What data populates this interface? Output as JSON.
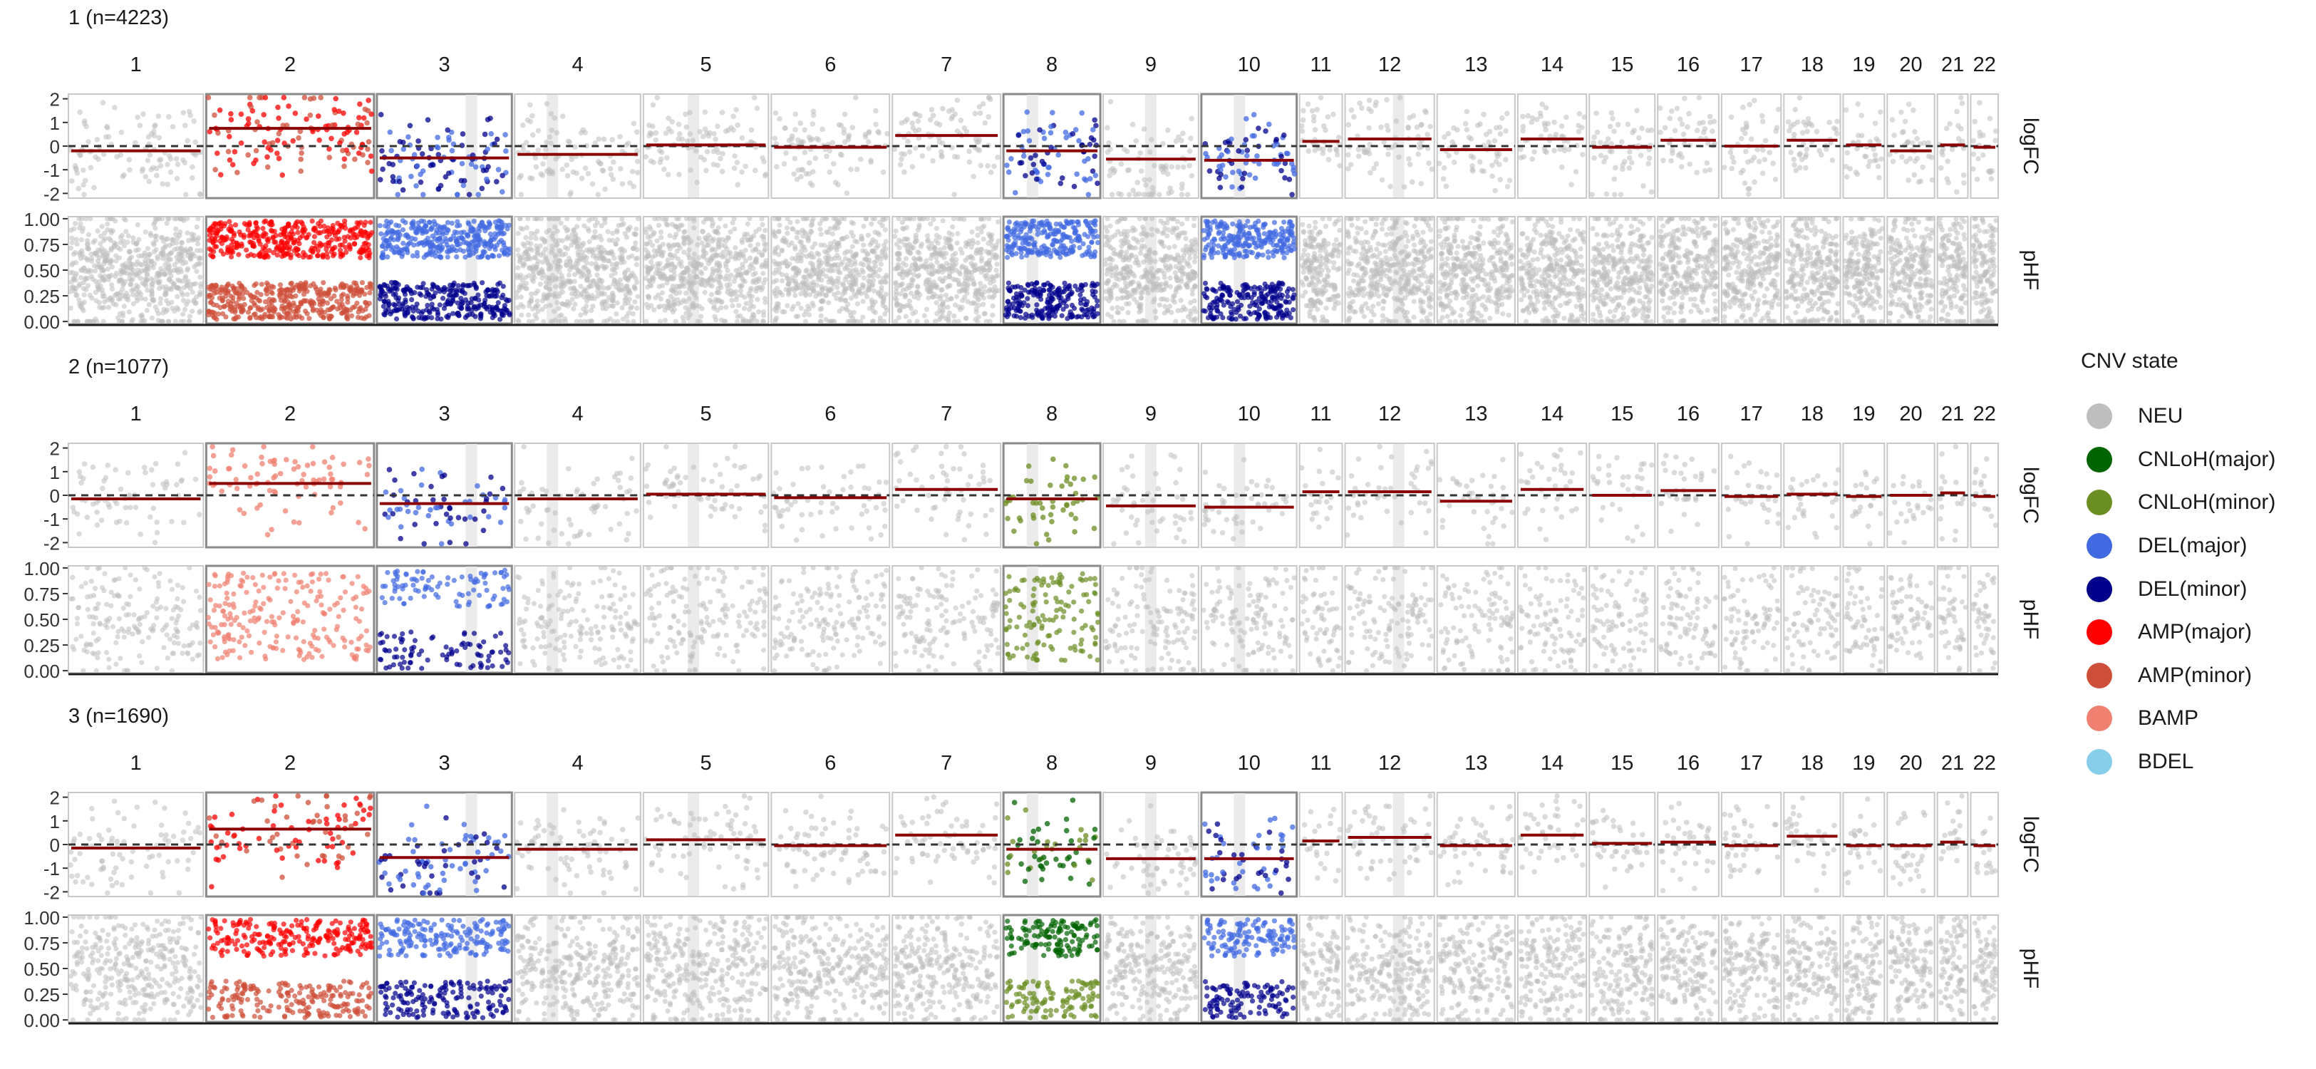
{
  "chart_data": {
    "type": "scatter",
    "legend": {
      "title": "CNV state",
      "placement": "right",
      "items": [
        {
          "label": "NEU",
          "color": "#bebebe"
        },
        {
          "label": "CNLoH(major)",
          "color": "#006400"
        },
        {
          "label": "CNLoH(minor)",
          "color": "#6b8e23"
        },
        {
          "label": "DEL(major)",
          "color": "#4169e1"
        },
        {
          "label": "DEL(minor)",
          "color": "#00008b"
        },
        {
          "label": "AMP(major)",
          "color": "#ff0000"
        },
        {
          "label": "AMP(minor)",
          "color": "#cd4f39"
        },
        {
          "label": "BAMP",
          "color": "#f08070"
        },
        {
          "label": "BDEL",
          "color": "#87ceeb"
        }
      ]
    },
    "chromosomes": [
      "1",
      "2",
      "3",
      "4",
      "5",
      "6",
      "7",
      "8",
      "9",
      "10",
      "11",
      "12",
      "13",
      "14",
      "15",
      "16",
      "17",
      "18",
      "19",
      "20",
      "21",
      "22"
    ],
    "chrom_widths": [
      177,
      220,
      177,
      165,
      164,
      155,
      142,
      127,
      125,
      125,
      56,
      117,
      102,
      90,
      86,
      80,
      78,
      74,
      54,
      62,
      40,
      36
    ],
    "panel_labels": [
      "logFC",
      "pHF"
    ],
    "logfc_axis": {
      "ticks": [
        2,
        1,
        0,
        -1,
        -2
      ],
      "tick_labels": [
        "2",
        "1",
        "0",
        "-1",
        "-2"
      ],
      "ylim": [
        -2.2,
        2.2
      ],
      "reference_line": 0
    },
    "phf_axis": {
      "ticks": [
        1,
        0.75,
        0.5,
        0.25,
        0
      ],
      "tick_labels": [
        "1.00",
        "0.75",
        "0.50",
        "0.25",
        "0.00"
      ],
      "ylim": [
        -0.02,
        1.02
      ]
    },
    "facets": [
      {
        "title": "1 (n=4223)",
        "density": 1.0,
        "segments": [
          0.0,
          0.0,
          0.7,
          0.3,
          0.4,
          0.0,
          0.0,
          0.3,
          0.5,
          0.4,
          0.0,
          0.6,
          0.0,
          0.0,
          0.0,
          0.0,
          0.0,
          0.0,
          0.0,
          0.0,
          0.0,
          0.0
        ],
        "logfc_means": [
          -0.2,
          0.75,
          -0.5,
          -0.35,
          0.05,
          -0.05,
          0.45,
          -0.2,
          -0.55,
          -0.6,
          0.2,
          0.3,
          -0.15,
          0.3,
          -0.05,
          0.25,
          0.0,
          0.25,
          0.05,
          -0.2,
          0.05,
          -0.05
        ],
        "states": [
          "NEU",
          "AMP",
          "DEL",
          "NEU",
          "NEU",
          "NEU",
          "NEU",
          "DEL",
          "NEU",
          "DEL",
          "NEU",
          "NEU",
          "NEU",
          "NEU",
          "NEU",
          "NEU",
          "NEU",
          "NEU",
          "NEU",
          "NEU",
          "NEU",
          "NEU"
        ]
      },
      {
        "title": "2 (n=1077)",
        "density": 0.28,
        "segments": [
          0.0,
          0.0,
          0.7,
          0.3,
          0.4,
          0.0,
          0.0,
          0.3,
          0.5,
          0.4,
          0.0,
          0.6,
          0.0,
          0.0,
          0.0,
          0.0,
          0.0,
          0.0,
          0.0,
          0.0,
          0.0,
          0.0
        ],
        "logfc_means": [
          -0.15,
          0.5,
          -0.35,
          -0.15,
          0.05,
          -0.1,
          0.25,
          -0.15,
          -0.45,
          -0.5,
          0.15,
          0.15,
          -0.25,
          0.25,
          0.0,
          0.2,
          -0.05,
          0.05,
          -0.05,
          0.0,
          0.1,
          -0.05
        ],
        "states": [
          "NEU",
          "BAMP",
          "DEL",
          "NEU",
          "NEU",
          "NEU",
          "NEU",
          "CNLOH_MINOR",
          "NEU",
          "NEU",
          "NEU",
          "NEU",
          "NEU",
          "NEU",
          "NEU",
          "NEU",
          "NEU",
          "NEU",
          "NEU",
          "NEU",
          "NEU",
          "NEU"
        ]
      },
      {
        "title": "3 (n=1690)",
        "density": 0.55,
        "segments": [
          0.0,
          0.0,
          0.7,
          0.3,
          0.4,
          0.0,
          0.0,
          0.3,
          0.5,
          0.4,
          0.0,
          0.6,
          0.0,
          0.0,
          0.0,
          0.0,
          0.0,
          0.0,
          0.0,
          0.0,
          0.0,
          0.0
        ],
        "logfc_means": [
          -0.15,
          0.65,
          -0.55,
          -0.2,
          0.2,
          -0.05,
          0.4,
          -0.2,
          -0.6,
          -0.6,
          0.15,
          0.3,
          -0.05,
          0.4,
          0.05,
          0.1,
          -0.05,
          0.35,
          -0.05,
          -0.05,
          0.1,
          -0.05
        ],
        "states": [
          "NEU",
          "AMP",
          "DEL",
          "NEU",
          "NEU",
          "NEU",
          "NEU",
          "CNLOH",
          "NEU",
          "DEL",
          "NEU",
          "NEU",
          "NEU",
          "NEU",
          "NEU",
          "NEU",
          "NEU",
          "NEU",
          "NEU",
          "NEU",
          "NEU",
          "NEU"
        ]
      }
    ]
  }
}
